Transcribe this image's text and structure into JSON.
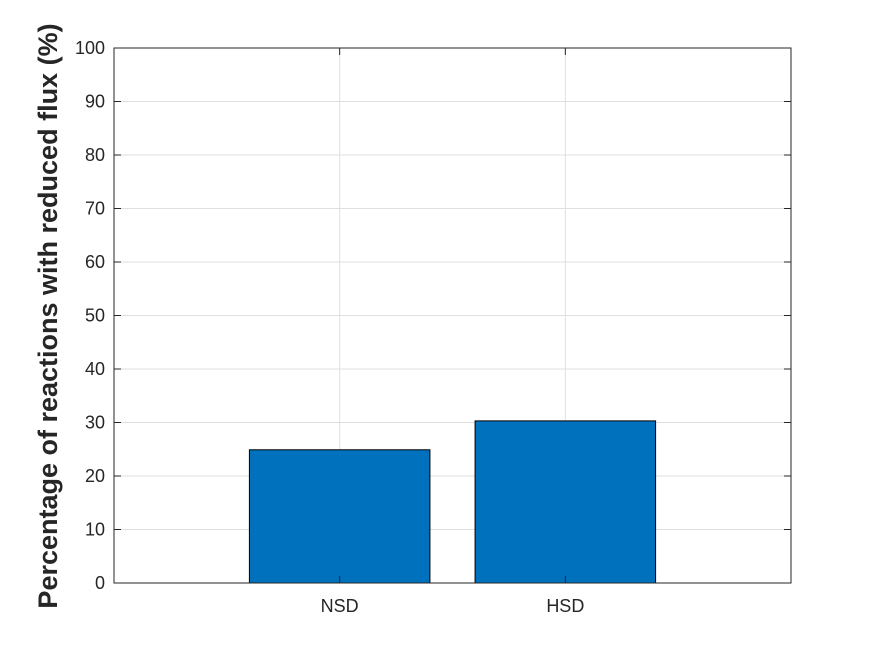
{
  "chart_data": {
    "type": "bar",
    "title": "",
    "xlabel": "",
    "ylabel": "Percentage of reactions with reduced flux (%)",
    "categories": [
      "NSD",
      "HSD"
    ],
    "values": [
      24.9,
      30.3
    ],
    "ylim": [
      0,
      100
    ],
    "yticks": [
      0,
      10,
      20,
      30,
      40,
      50,
      60,
      70,
      80,
      90,
      100
    ],
    "grid": true,
    "bar_color": "#0072BD",
    "bar_edge_color": "#000000",
    "grid_color": "#DFDFDF",
    "axis_color": "#262626"
  }
}
